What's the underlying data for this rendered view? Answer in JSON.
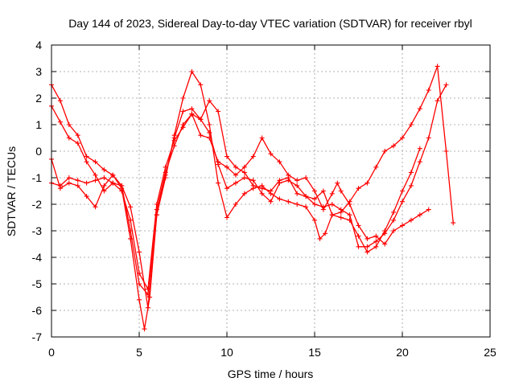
{
  "chart_data": {
    "type": "scatter",
    "title": "Day 144 of 2023, Sidereal Day-to-day VTEC variation (SDTVAR) for receiver rbyl",
    "xlabel": "GPS time / hours",
    "ylabel": "SDTVAR / TECUs",
    "xlim": [
      0,
      25
    ],
    "ylim": [
      -7,
      4
    ],
    "xticks": [
      0,
      5,
      10,
      15,
      20,
      25
    ],
    "yticks": [
      -7,
      -6,
      -5,
      -4,
      -3,
      -2,
      -1,
      0,
      1,
      2,
      3,
      4
    ],
    "grid": true,
    "marker": "+",
    "color": "#ff0000",
    "series": [
      {
        "x": [
          0.0,
          0.5,
          1.0,
          1.5,
          2.0,
          2.5,
          3.0,
          3.5,
          4.0,
          4.5,
          5.0,
          5.3,
          5.6,
          6.0,
          6.5,
          7.0,
          7.5,
          8.0,
          8.5,
          9.0,
          9.5,
          10.0,
          10.5,
          11.0,
          11.5,
          12.0,
          12.5,
          13.0,
          13.5,
          14.0,
          14.5,
          15.0,
          15.3,
          15.6,
          16.0,
          16.5,
          17.0,
          17.5,
          18.0,
          18.5,
          19.0,
          19.5,
          20.0,
          20.5,
          21.0,
          21.5,
          22.0,
          22.5,
          22.9
        ],
        "y": [
          2.5,
          1.9,
          1.0,
          0.6,
          -0.2,
          -0.4,
          -0.7,
          -0.9,
          -1.4,
          -3.3,
          -5.6,
          -6.7,
          -5.5,
          -2.4,
          -1.0,
          0.6,
          2.0,
          3.0,
          2.5,
          1.0,
          -1.2,
          -2.5,
          -2.0,
          -1.6,
          -1.4,
          -1.3,
          -1.6,
          -1.8,
          -1.9,
          -2.0,
          -2.1,
          -2.6,
          -3.3,
          -3.1,
          -2.4,
          -2.3,
          -1.9,
          -1.4,
          -1.2,
          -0.6,
          0.0,
          0.2,
          0.5,
          1.0,
          1.6,
          2.3,
          3.2,
          0.0,
          -2.7
        ]
      },
      {
        "x": [
          0.0,
          0.5,
          1.0,
          1.5,
          2.0,
          2.5,
          3.0,
          3.5,
          4.0,
          4.5,
          5.0,
          5.5,
          6.0,
          6.5,
          7.0,
          7.5,
          8.0,
          8.5,
          9.0,
          9.5,
          10.0,
          10.5,
          11.0,
          11.5,
          12.0,
          12.5,
          13.0,
          13.5,
          14.0,
          14.5,
          15.0,
          15.5,
          16.0,
          16.5,
          17.0,
          17.5,
          18.0,
          18.5,
          19.0,
          19.5,
          20.0,
          20.5,
          21.0,
          21.5,
          22.0,
          22.5
        ],
        "y": [
          -1.2,
          -1.3,
          -1.0,
          -1.1,
          -1.2,
          -1.1,
          -1.0,
          -1.2,
          -1.5,
          -2.6,
          -4.6,
          -5.2,
          -2.0,
          -0.6,
          0.4,
          0.9,
          1.4,
          1.2,
          0.7,
          -0.5,
          -1.4,
          -1.2,
          -1.0,
          -1.1,
          -1.6,
          -1.9,
          -1.2,
          -1.1,
          -1.3,
          -1.7,
          -2.0,
          -2.1,
          -2.0,
          -2.2,
          -2.4,
          -3.6,
          -3.6,
          -3.4,
          -3.1,
          -2.6,
          -1.9,
          -1.3,
          -0.4,
          0.5,
          1.9,
          2.5
        ]
      },
      {
        "x": [
          0.0,
          0.5,
          1.0,
          1.5,
          2.0,
          2.5,
          3.0,
          3.5,
          4.0,
          4.5,
          5.0,
          5.5,
          6.0,
          6.5,
          7.0,
          7.5,
          8.0,
          8.5,
          9.0,
          9.5,
          10.0,
          10.5,
          11.0,
          11.5,
          12.0,
          12.5,
          13.0,
          13.5,
          14.0,
          14.5,
          15.0,
          15.5,
          16.0,
          16.3,
          16.5,
          17.0,
          17.5,
          18.0,
          18.5,
          19.0,
          19.5,
          20.0,
          20.5,
          21.0,
          21.5
        ],
        "y": [
          1.7,
          1.1,
          0.5,
          0.3,
          -0.4,
          -0.9,
          -1.5,
          -1.2,
          -1.3,
          -3.0,
          -5.0,
          -5.4,
          -2.2,
          -0.8,
          0.2,
          1.0,
          1.4,
          0.6,
          0.5,
          -0.4,
          -0.6,
          -0.9,
          -0.6,
          -0.2,
          0.5,
          -0.1,
          -0.4,
          -0.9,
          -1.1,
          -1.0,
          -1.5,
          -2.2,
          -1.6,
          -1.2,
          -1.5,
          -2.0,
          -2.8,
          -3.3,
          -3.2,
          -3.5,
          -3.0,
          -2.8,
          -2.6,
          -2.4,
          -2.2
        ]
      },
      {
        "x": [
          0.0,
          0.5,
          1.0,
          1.5,
          2.0,
          2.5,
          3.0,
          3.5,
          4.0,
          4.5,
          5.0,
          5.5,
          6.0,
          6.5,
          7.0,
          7.5,
          8.0,
          8.5,
          9.0,
          9.5,
          10.0,
          10.5,
          11.0,
          11.5,
          12.0,
          12.5,
          13.0,
          13.5,
          14.0,
          14.5,
          15.0,
          15.5,
          16.0,
          16.5,
          17.0,
          17.5,
          18.0,
          18.5,
          19.0,
          19.5,
          20.0,
          20.5,
          21.0
        ],
        "y": [
          -0.3,
          -1.4,
          -1.2,
          -1.3,
          -1.7,
          -2.1,
          -1.3,
          -0.9,
          -1.3,
          -2.1,
          -3.8,
          -5.9,
          -2.4,
          -0.9,
          0.5,
          1.5,
          1.6,
          1.2,
          1.9,
          1.5,
          -0.2,
          -0.6,
          -0.8,
          -1.3,
          -1.4,
          -1.5,
          -1.1,
          -1.0,
          -1.6,
          -1.7,
          -1.8,
          -1.5,
          -2.4,
          -2.5,
          -2.6,
          -3.2,
          -3.8,
          -3.6,
          -3.0,
          -2.3,
          -1.5,
          -0.8,
          0.1
        ]
      }
    ]
  }
}
